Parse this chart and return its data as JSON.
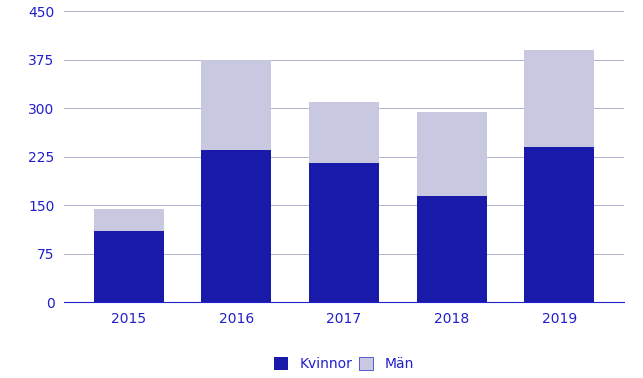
{
  "years": [
    "2015",
    "2016",
    "2017",
    "2018",
    "2019"
  ],
  "kvinnor": [
    110,
    235,
    215,
    165,
    240
  ],
  "man": [
    35,
    140,
    95,
    130,
    150
  ],
  "color_kvinnor": "#1a1aaa",
  "color_man": "#c8c8e0",
  "ylim": [
    0,
    450
  ],
  "yticks": [
    0,
    75,
    150,
    225,
    300,
    375,
    450
  ],
  "legend_kvinnor": "Kvinnor",
  "legend_man": "Män",
  "bar_width": 0.65,
  "background_color": "#ffffff",
  "grid_color": "#b0b0d0",
  "axis_color": "#2020cc",
  "tick_fontsize": 10,
  "legend_fontsize": 10
}
